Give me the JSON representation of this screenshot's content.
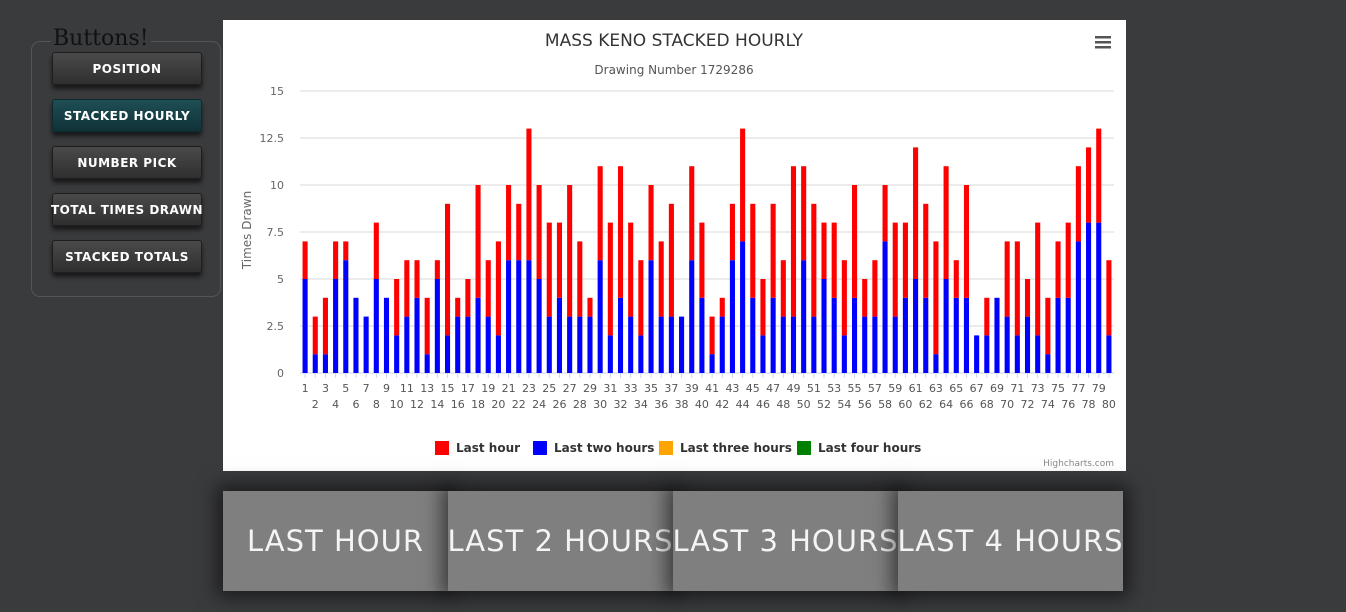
{
  "sidebar": {
    "legend": "Buttons!",
    "buttons": [
      {
        "label": "POSITION",
        "active": false
      },
      {
        "label": "STACKED HOURLY",
        "active": true
      },
      {
        "label": "NUMBER PICK",
        "active": false
      },
      {
        "label": "TOTAL TIMES DRAWN",
        "active": false
      },
      {
        "label": "STACKED TOTALS",
        "active": false
      }
    ]
  },
  "chart": {
    "menu_icon": "hamburger-menu-icon",
    "credit": "Highcharts.com"
  },
  "chart_data": {
    "type": "bar",
    "stacked": true,
    "title": "MASS KENO STACKED HOURLY",
    "subtitle": "Drawing Number 1729286",
    "ylabel": "Times Drawn",
    "xlabel": "",
    "ylim": [
      0,
      15
    ],
    "yticks": [
      "0",
      "2.5",
      "5",
      "7.5",
      "10",
      "12.5",
      "15"
    ],
    "grid": true,
    "legend_position": "bottom-center",
    "categories": [
      "1",
      "2",
      "3",
      "4",
      "5",
      "6",
      "7",
      "8",
      "9",
      "10",
      "11",
      "12",
      "13",
      "14",
      "15",
      "16",
      "17",
      "18",
      "19",
      "20",
      "21",
      "22",
      "23",
      "24",
      "25",
      "26",
      "27",
      "28",
      "29",
      "30",
      "31",
      "32",
      "33",
      "34",
      "35",
      "36",
      "37",
      "38",
      "39",
      "40",
      "41",
      "42",
      "43",
      "44",
      "45",
      "46",
      "47",
      "48",
      "49",
      "50",
      "51",
      "52",
      "53",
      "54",
      "55",
      "56",
      "57",
      "58",
      "59",
      "60",
      "61",
      "62",
      "63",
      "64",
      "65",
      "66",
      "67",
      "68",
      "69",
      "70",
      "71",
      "72",
      "73",
      "74",
      "75",
      "76",
      "77",
      "78",
      "79",
      "80"
    ],
    "series": [
      {
        "name": "Last hour",
        "color": "#ff0000",
        "values": [
          2,
          2,
          3,
          2,
          1,
          0,
          0,
          3,
          0,
          3,
          3,
          2,
          3,
          1,
          7,
          1,
          2,
          6,
          3,
          5,
          4,
          3,
          7,
          5,
          5,
          4,
          7,
          4,
          1,
          5,
          6,
          7,
          5,
          4,
          4,
          4,
          6,
          0,
          5,
          4,
          2,
          1,
          3,
          6,
          5,
          3,
          5,
          3,
          8,
          5,
          6,
          3,
          4,
          4,
          6,
          2,
          3,
          3,
          5,
          4,
          7,
          5,
          6,
          6,
          2,
          6,
          0,
          2,
          0,
          4,
          5,
          2,
          6,
          3,
          3,
          4,
          4,
          4,
          5,
          4
        ]
      },
      {
        "name": "Last two hours",
        "color": "#0000ff",
        "values": [
          5,
          1,
          1,
          5,
          6,
          4,
          3,
          5,
          4,
          2,
          3,
          4,
          1,
          5,
          2,
          3,
          3,
          4,
          3,
          2,
          6,
          6,
          6,
          5,
          3,
          4,
          3,
          3,
          3,
          6,
          2,
          4,
          3,
          2,
          6,
          3,
          3,
          3,
          6,
          4,
          1,
          3,
          6,
          7,
          4,
          2,
          4,
          3,
          3,
          6,
          3,
          5,
          4,
          2,
          4,
          3,
          3,
          7,
          3,
          4,
          5,
          4,
          1,
          5,
          4,
          4,
          2,
          2,
          4,
          3,
          2,
          3,
          2,
          1,
          4,
          4,
          7,
          8,
          8,
          2
        ]
      },
      {
        "name": "Last three hours",
        "color": "#ffa500",
        "values": [
          0,
          0,
          0,
          0,
          0,
          0,
          0,
          0,
          0,
          0,
          0,
          0,
          0,
          0,
          0,
          0,
          0,
          0,
          0,
          0,
          0,
          0,
          0,
          0,
          0,
          0,
          0,
          0,
          0,
          0,
          0,
          0,
          0,
          0,
          0,
          0,
          0,
          0,
          0,
          0,
          0,
          0,
          0,
          0,
          0,
          0,
          0,
          0,
          0,
          0,
          0,
          0,
          0,
          0,
          0,
          0,
          0,
          0,
          0,
          0,
          0,
          0,
          0,
          0,
          0,
          0,
          0,
          0,
          0,
          0,
          0,
          0,
          0,
          0,
          0,
          0,
          0,
          0,
          0,
          0
        ]
      },
      {
        "name": "Last four hours",
        "color": "#008000",
        "values": [
          0,
          0,
          0,
          0,
          0,
          0,
          0,
          0,
          0,
          0,
          0,
          0,
          0,
          0,
          0,
          0,
          0,
          0,
          0,
          0,
          0,
          0,
          0,
          0,
          0,
          0,
          0,
          0,
          0,
          0,
          0,
          0,
          0,
          0,
          0,
          0,
          0,
          0,
          0,
          0,
          0,
          0,
          0,
          0,
          0,
          0,
          0,
          0,
          0,
          0,
          0,
          0,
          0,
          0,
          0,
          0,
          0,
          0,
          0,
          0,
          0,
          0,
          0,
          0,
          0,
          0,
          0,
          0,
          0,
          0,
          0,
          0,
          0,
          0,
          0,
          0,
          0,
          0,
          0,
          0
        ]
      }
    ]
  },
  "bottom_buttons": [
    {
      "label": "LAST HOUR"
    },
    {
      "label": "LAST 2 HOURS"
    },
    {
      "label": "LAST 3 HOURS"
    },
    {
      "label": "LAST 4 HOURS"
    }
  ]
}
